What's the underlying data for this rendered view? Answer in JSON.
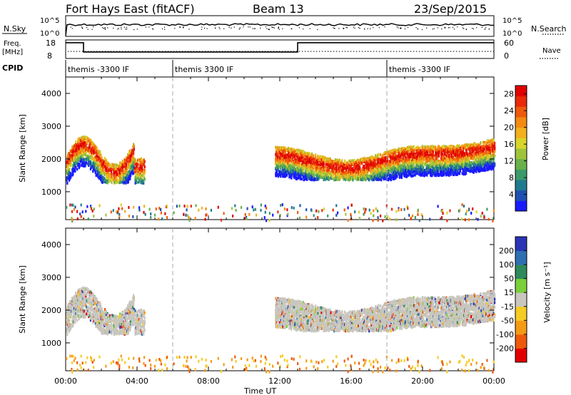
{
  "header": {
    "station": "Fort Hays East (fitACF)",
    "beam": "Beam 13",
    "date": "23/Sep/2015"
  },
  "summary": {
    "nsky_label": "N.Sky",
    "nsky_ticks": [
      "10^5",
      "10^0"
    ],
    "nsearch_label": "N.Search",
    "nsearch_ticks": [
      "10^5",
      "10^0"
    ],
    "freq_label_1": "Freq.",
    "freq_label_2": "[MHz]",
    "freq_ticks": [
      "18",
      "8"
    ],
    "nave_label": "Nave",
    "nave_ticks": [
      "60",
      "0"
    ],
    "cpid_label": "CPID",
    "cpid_segments": [
      {
        "start": 0.0,
        "end": 6.0,
        "label": "themis -3300 IF"
      },
      {
        "start": 6.0,
        "end": 18.0,
        "label": "themis 3300 IF"
      },
      {
        "start": 18.0,
        "end": 24.0,
        "label": "themis -3300 IF"
      }
    ],
    "freq_steps": [
      {
        "start": 0.0,
        "end": 1.0,
        "level": 0.85
      },
      {
        "start": 1.0,
        "end": 13.0,
        "level": 0.35
      },
      {
        "start": 13.0,
        "end": 24.0,
        "level": 0.85
      }
    ]
  },
  "chart_data": [
    {
      "type": "heatmap",
      "name": "power",
      "ylabel": "Slant Range [km]",
      "ylim": [
        150,
        4500
      ],
      "xlim": [
        0,
        24
      ],
      "y_ticks": [
        "1000",
        "2000",
        "3000",
        "4000"
      ],
      "x_ticks": [
        "00:00",
        "04:00",
        "08:00",
        "12:00",
        "16:00",
        "20:00",
        "00:00"
      ],
      "colorbar": {
        "label": "Power [dB]",
        "ticks": [
          "4",
          "8",
          "12",
          "16",
          "20",
          "24",
          "28"
        ],
        "range": [
          0,
          30
        ],
        "colors": [
          "#1a1aff",
          "#1f4fb0",
          "#1f7a8f",
          "#3a9a6a",
          "#6ab04a",
          "#9fc43a",
          "#d8d52a",
          "#f2b01e",
          "#f28a12",
          "#ee5a0c",
          "#e82a08",
          "#e10000"
        ]
      },
      "scatter_regions": [
        {
          "t": [
            0.0,
            3.8
          ],
          "r": [
            1300,
            3200
          ],
          "density": 0.55,
          "profile": "early"
        },
        {
          "t": [
            3.8,
            4.4
          ],
          "r": [
            1300,
            2200
          ],
          "density": 0.4,
          "profile": "blob"
        },
        {
          "t": [
            11.7,
            24.0
          ],
          "r": [
            1400,
            3000
          ],
          "density": 0.6,
          "profile": "late"
        },
        {
          "t": [
            0.0,
            24.0
          ],
          "r": [
            150,
            650
          ],
          "density": 0.08,
          "profile": "near"
        }
      ]
    },
    {
      "type": "heatmap",
      "name": "velocity",
      "xlabel": "Time UT",
      "ylabel": "Slant Range [km]",
      "ylim": [
        150,
        4500
      ],
      "xlim": [
        0,
        24
      ],
      "y_ticks": [
        "1000",
        "2000",
        "3000",
        "4000"
      ],
      "x_ticks": [
        "00:00",
        "04:00",
        "08:00",
        "12:00",
        "16:00",
        "20:00",
        "00:00"
      ],
      "colorbar": {
        "label": "Velocity [m s⁻¹]",
        "ticks": [
          "200",
          "100",
          "50",
          "15",
          "-15",
          "-50",
          "-100",
          "-200"
        ],
        "colors": [
          "#2a35b5",
          "#2d6fb0",
          "#2e8a5a",
          "#7acf3a",
          "#c8c6be",
          "#f4cc22",
          "#f59a14",
          "#ee5a0c",
          "#e10000"
        ]
      }
    }
  ],
  "markers": {
    "dashed_times": [
      6.0,
      18.0
    ]
  }
}
